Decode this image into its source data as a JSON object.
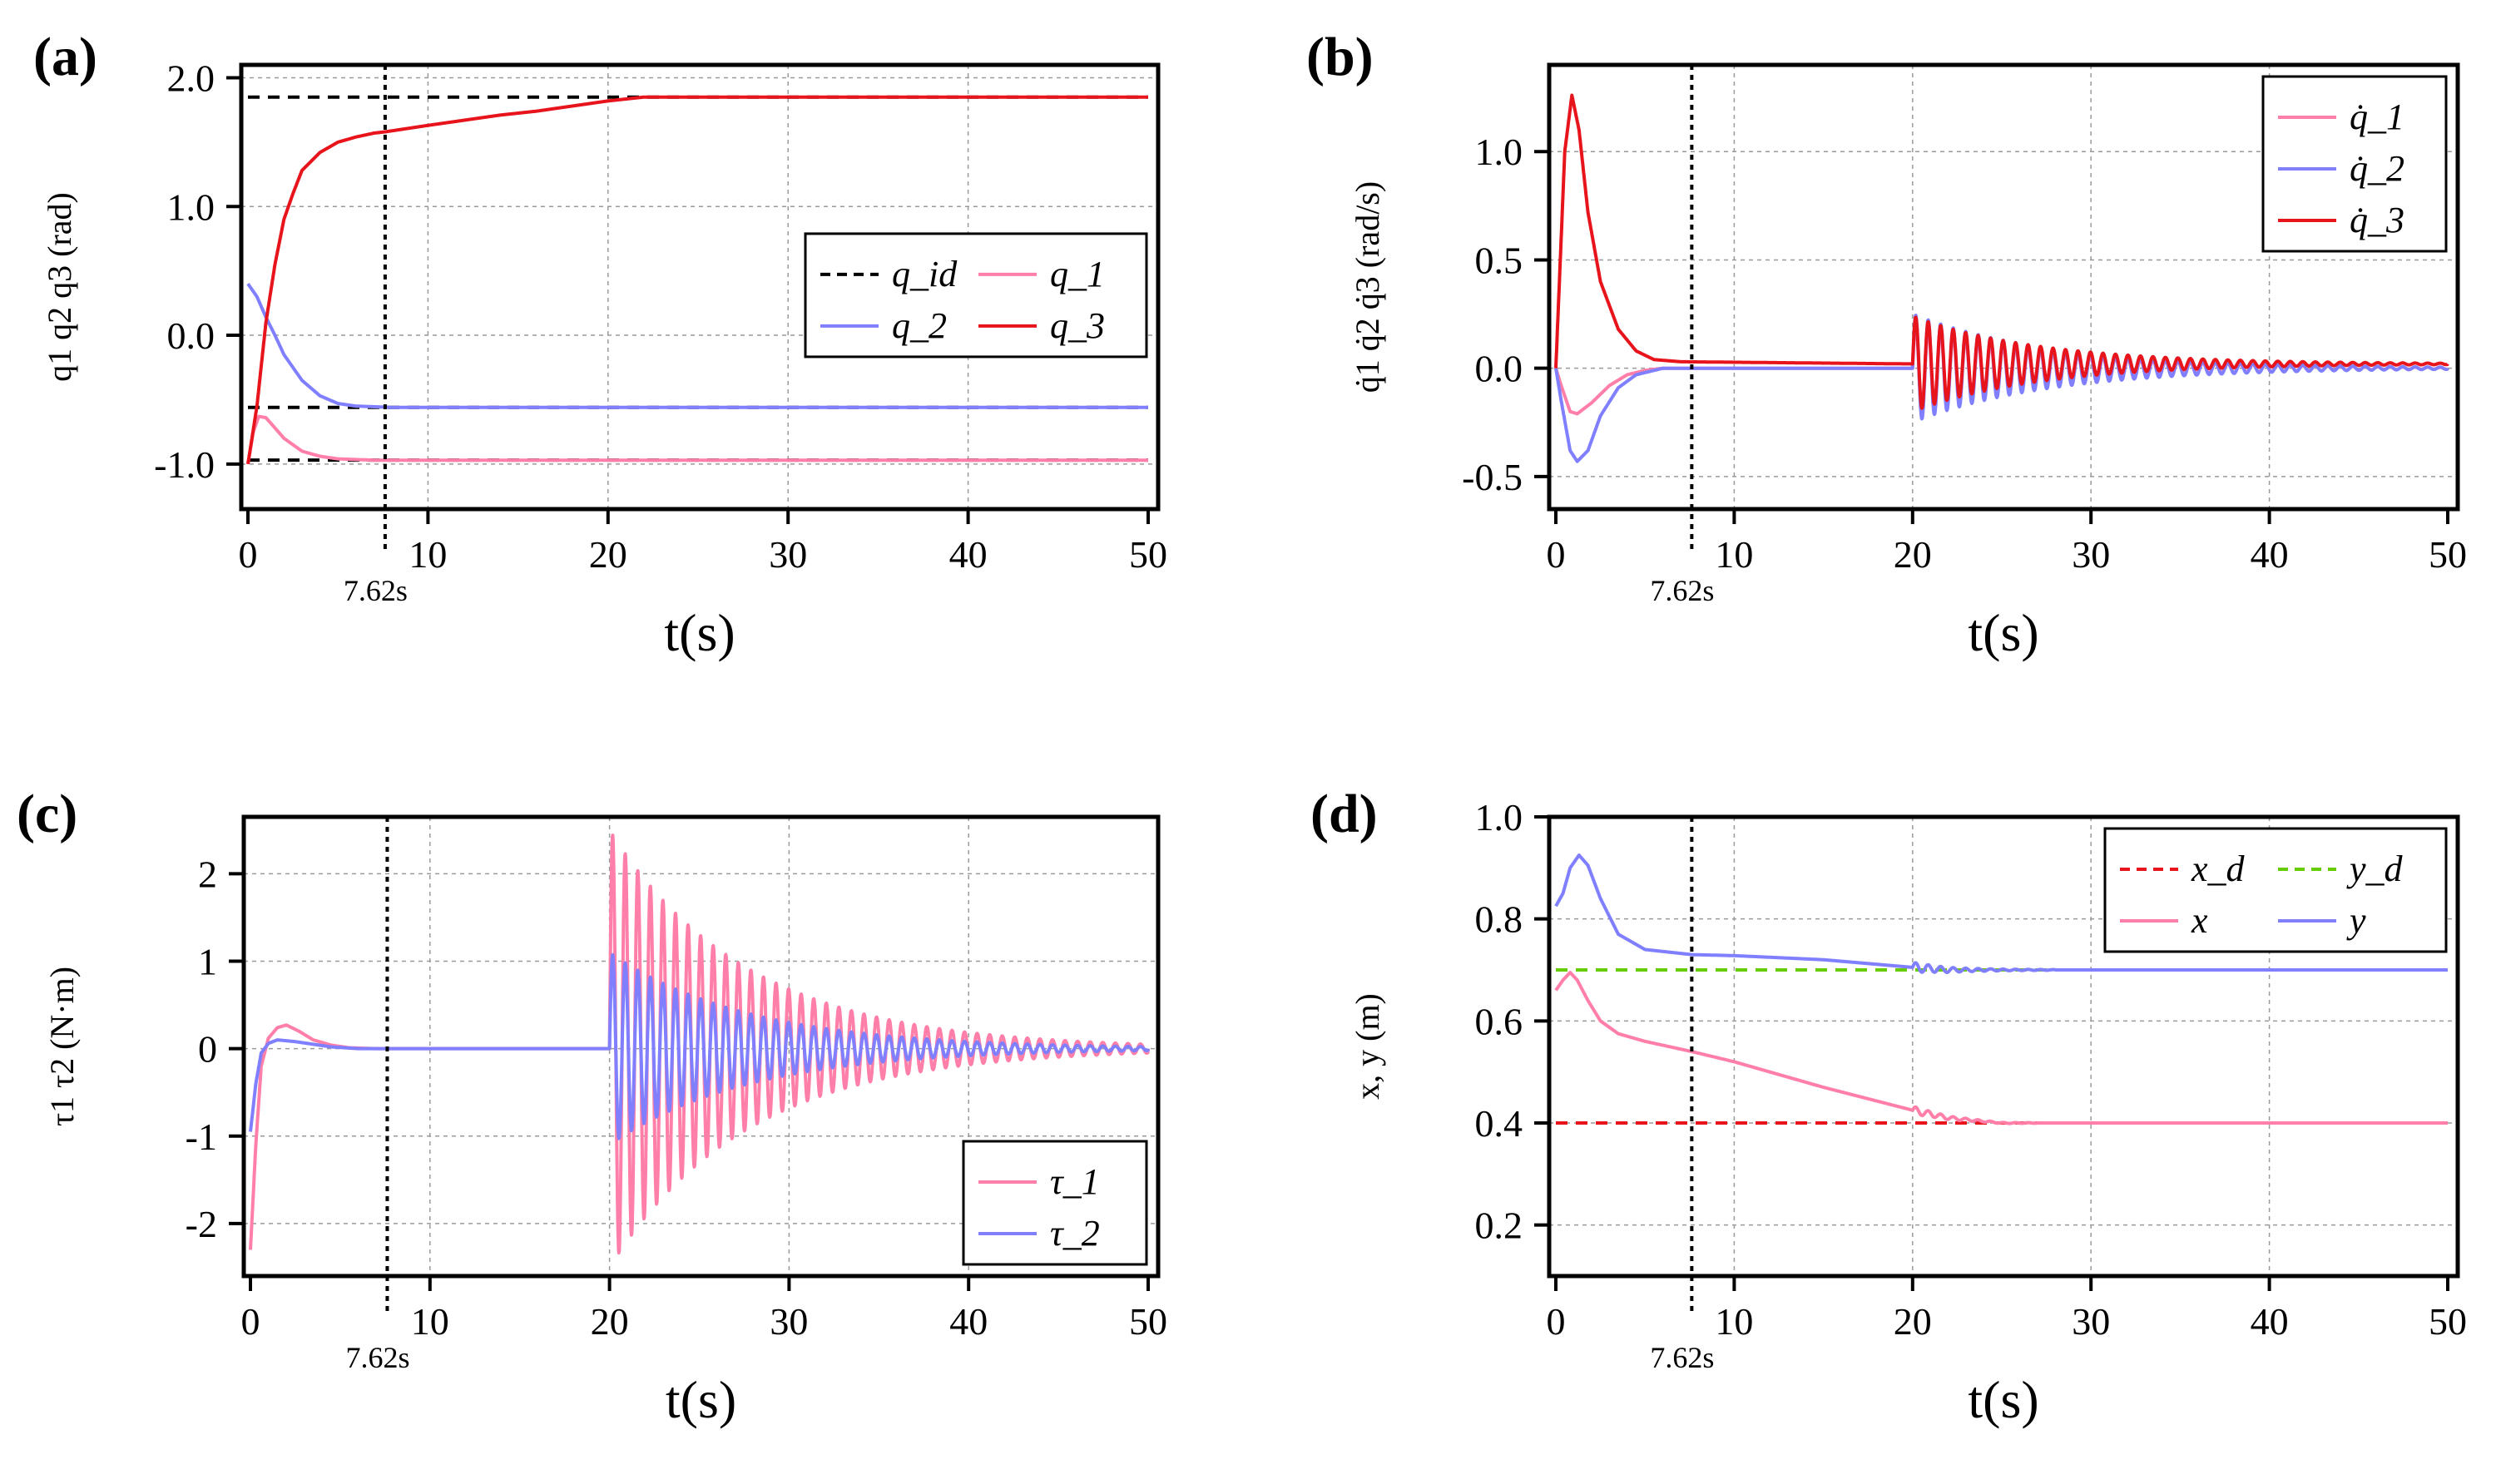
{
  "figure": {
    "time_unit_label": "t(s)",
    "marker_label": "7.62s"
  },
  "colors": {
    "pink": "#ff7fa8",
    "blue": "#7f7fff",
    "red": "#e8141c",
    "black": "#000000",
    "green": "#66cc00",
    "dred": "#e8141c"
  },
  "chart_data": [
    {
      "id": "a",
      "panel_label": "(a)",
      "type": "line",
      "xlabel": "t(s)",
      "ylabel": "q1 q2 q3 (rad)",
      "xlim": [
        0,
        50
      ],
      "ylim": [
        -1.35,
        2.1
      ],
      "xticks": [
        0,
        10,
        20,
        30,
        40,
        50
      ],
      "yticks": [
        -1.0,
        0.0,
        1.0,
        2.0
      ],
      "ytick_labels": [
        "-1.0",
        "0.0",
        "1.0",
        "2.0"
      ],
      "vline": {
        "x": 7.62,
        "label": "7.62s"
      },
      "legend": {
        "position": "middle-right",
        "columns": 2
      },
      "series": [
        {
          "name": "q_id",
          "style": "dashed",
          "color": "black",
          "segments": [
            [
              [
                0,
                1.85
              ],
              [
                50,
                1.85
              ]
            ],
            [
              [
                0,
                -0.56
              ],
              [
                50,
                -0.56
              ]
            ],
            [
              [
                0,
                -0.97
              ],
              [
                50,
                -0.97
              ]
            ]
          ]
        },
        {
          "name": "q_1",
          "style": "solid",
          "color": "pink",
          "points": [
            [
              0,
              -1.0
            ],
            [
              0.3,
              -0.75
            ],
            [
              0.6,
              -0.63
            ],
            [
              1,
              -0.64
            ],
            [
              1.5,
              -0.72
            ],
            [
              2,
              -0.8
            ],
            [
              3,
              -0.9
            ],
            [
              4,
              -0.94
            ],
            [
              5,
              -0.96
            ],
            [
              7,
              -0.97
            ],
            [
              50,
              -0.97
            ]
          ]
        },
        {
          "name": "q_2",
          "style": "solid",
          "color": "blue",
          "points": [
            [
              0,
              0.4
            ],
            [
              0.5,
              0.3
            ],
            [
              1,
              0.14
            ],
            [
              1.5,
              0.0
            ],
            [
              2,
              -0.15
            ],
            [
              3,
              -0.35
            ],
            [
              4,
              -0.47
            ],
            [
              5,
              -0.53
            ],
            [
              6,
              -0.55
            ],
            [
              8,
              -0.56
            ],
            [
              50,
              -0.56
            ]
          ]
        },
        {
          "name": "q_3",
          "style": "solid",
          "color": "red",
          "points": [
            [
              0,
              -1.0
            ],
            [
              0.5,
              -0.55
            ],
            [
              1,
              0.1
            ],
            [
              1.5,
              0.55
            ],
            [
              2,
              0.9
            ],
            [
              2.5,
              1.1
            ],
            [
              3,
              1.28
            ],
            [
              4,
              1.42
            ],
            [
              5,
              1.5
            ],
            [
              6,
              1.54
            ],
            [
              7,
              1.57
            ],
            [
              7.62,
              1.58
            ],
            [
              10,
              1.63
            ],
            [
              12,
              1.67
            ],
            [
              14,
              1.71
            ],
            [
              16,
              1.74
            ],
            [
              18,
              1.78
            ],
            [
              20,
              1.82
            ],
            [
              22,
              1.85
            ],
            [
              50,
              1.85
            ]
          ]
        }
      ]
    },
    {
      "id": "b",
      "panel_label": "(b)",
      "type": "line",
      "xlabel": "t(s)",
      "ylabel": "q̇1 q̇2 q̇3 (rad/s)",
      "xlim": [
        0,
        50
      ],
      "ylim": [
        -0.65,
        1.4
      ],
      "xticks": [
        0,
        10,
        20,
        30,
        40,
        50
      ],
      "yticks": [
        -0.5,
        0.0,
        0.5,
        1.0
      ],
      "ytick_labels": [
        "-0.5",
        "0.0",
        "0.5",
        "1.0"
      ],
      "vline": {
        "x": 7.62,
        "label": "7.62s"
      },
      "legend": {
        "position": "top-right",
        "columns": 1
      },
      "series": [
        {
          "name": "q̇_1",
          "style": "solid",
          "color": "pink",
          "points": [
            [
              0,
              0
            ],
            [
              0.3,
              -0.08
            ],
            [
              0.8,
              -0.2
            ],
            [
              1.2,
              -0.21
            ],
            [
              2,
              -0.16
            ],
            [
              3,
              -0.08
            ],
            [
              4,
              -0.03
            ],
            [
              5,
              -0.01
            ],
            [
              6,
              0.0
            ],
            [
              20,
              0.0
            ]
          ],
          "oscillation": {
            "start": 20,
            "end": 50,
            "amp": 0.2,
            "decay": 0.13,
            "period": 0.7,
            "offset": 0.0
          }
        },
        {
          "name": "q̇_2",
          "style": "solid",
          "color": "blue",
          "points": [
            [
              0,
              0
            ],
            [
              0.3,
              -0.15
            ],
            [
              0.8,
              -0.38
            ],
            [
              1.2,
              -0.43
            ],
            [
              1.8,
              -0.38
            ],
            [
              2.5,
              -0.22
            ],
            [
              3.5,
              -0.09
            ],
            [
              4.5,
              -0.03
            ],
            [
              5.5,
              -0.01
            ],
            [
              6,
              0.0
            ],
            [
              20,
              0.0
            ]
          ],
          "oscillation": {
            "start": 20,
            "end": 50,
            "amp": 0.25,
            "decay": 0.13,
            "period": 0.7,
            "offset": 0.0
          }
        },
        {
          "name": "q̇_3",
          "style": "solid",
          "color": "red",
          "points": [
            [
              0,
              0
            ],
            [
              0.2,
              0.4
            ],
            [
              0.5,
              1.0
            ],
            [
              0.9,
              1.26
            ],
            [
              1.3,
              1.1
            ],
            [
              1.8,
              0.72
            ],
            [
              2.5,
              0.4
            ],
            [
              3.5,
              0.18
            ],
            [
              4.5,
              0.08
            ],
            [
              5.5,
              0.04
            ],
            [
              7,
              0.03
            ],
            [
              20,
              0.02
            ]
          ],
          "oscillation": {
            "start": 20,
            "end": 50,
            "amp": 0.22,
            "decay": 0.14,
            "period": 0.7,
            "offset": 0.0
          }
        }
      ]
    },
    {
      "id": "c",
      "panel_label": "(c)",
      "type": "line",
      "xlabel": "t(s)",
      "ylabel": "τ1 τ2 (N·m)",
      "xlim": [
        0,
        50
      ],
      "ylim": [
        -2.6,
        2.65
      ],
      "xticks": [
        0,
        10,
        20,
        30,
        40,
        50
      ],
      "yticks": [
        -2,
        -1,
        0,
        1,
        2
      ],
      "ytick_labels": [
        "-2",
        "-1",
        "0",
        "1",
        "2"
      ],
      "vline": {
        "x": 7.62,
        "label": "7.62s"
      },
      "legend": {
        "position": "bottom-right",
        "columns": 1
      },
      "series": [
        {
          "name": "τ_1",
          "style": "solid",
          "color": "pink",
          "points": [
            [
              0,
              -2.3
            ],
            [
              0.3,
              -1.1
            ],
            [
              0.6,
              -0.2
            ],
            [
              1,
              0.12
            ],
            [
              1.5,
              0.24
            ],
            [
              2,
              0.27
            ],
            [
              2.7,
              0.2
            ],
            [
              3.5,
              0.1
            ],
            [
              4.5,
              0.04
            ],
            [
              5.5,
              0.01
            ],
            [
              7,
              0.0
            ],
            [
              20,
              0.0
            ]
          ],
          "oscillation": {
            "start": 20,
            "end": 50,
            "amp": 2.5,
            "decay": 0.13,
            "period": 0.7,
            "offset": 0.0
          }
        },
        {
          "name": "τ_2",
          "style": "solid",
          "color": "blue",
          "points": [
            [
              0,
              -0.95
            ],
            [
              0.3,
              -0.4
            ],
            [
              0.6,
              -0.05
            ],
            [
              1,
              0.06
            ],
            [
              1.5,
              0.1
            ],
            [
              2.5,
              0.08
            ],
            [
              3.5,
              0.05
            ],
            [
              4.5,
              0.02
            ],
            [
              6,
              0.0
            ],
            [
              20,
              0.0
            ]
          ],
          "oscillation": {
            "start": 20,
            "end": 50,
            "amp": 1.1,
            "decay": 0.13,
            "period": 0.7,
            "offset": 0.0
          }
        }
      ]
    },
    {
      "id": "d",
      "panel_label": "(d)",
      "type": "line",
      "xlabel": "t(s)",
      "ylabel": "x, y (m)",
      "xlim": [
        0,
        50
      ],
      "ylim": [
        0.1,
        1.0
      ],
      "xticks": [
        0,
        10,
        20,
        30,
        40,
        50
      ],
      "yticks": [
        0.2,
        0.4,
        0.6,
        0.8,
        1.0
      ],
      "ytick_labels": [
        "0.2",
        "0.4",
        "0.6",
        "0.8",
        "1.0"
      ],
      "vline": {
        "x": 7.62,
        "label": "7.62s"
      },
      "legend": {
        "position": "top-right",
        "columns": 2
      },
      "series": [
        {
          "name": "x_d",
          "style": "dashed",
          "color": "dred",
          "segments": [
            [
              [
                0,
                0.4
              ],
              [
                50,
                0.4
              ]
            ]
          ]
        },
        {
          "name": "y_d",
          "style": "dashed",
          "color": "green",
          "segments": [
            [
              [
                0,
                0.7
              ],
              [
                50,
                0.7
              ]
            ]
          ]
        },
        {
          "name": "x",
          "style": "solid",
          "color": "pink",
          "points": [
            [
              0,
              0.66
            ],
            [
              0.4,
              0.68
            ],
            [
              0.8,
              0.695
            ],
            [
              1.2,
              0.68
            ],
            [
              1.8,
              0.64
            ],
            [
              2.5,
              0.6
            ],
            [
              3.5,
              0.575
            ],
            [
              5,
              0.56
            ],
            [
              7.62,
              0.54
            ],
            [
              10,
              0.52
            ],
            [
              15,
              0.47
            ],
            [
              20,
              0.425
            ],
            [
              22,
              0.41
            ],
            [
              25,
              0.4
            ],
            [
              50,
              0.4
            ]
          ],
          "oscillation": {
            "start": 20,
            "end": 27,
            "amp": 0.008,
            "decay": 0.4,
            "period": 0.7,
            "offset": 0.0
          }
        },
        {
          "name": "y",
          "style": "solid",
          "color": "blue",
          "points": [
            [
              0,
              0.825
            ],
            [
              0.4,
              0.85
            ],
            [
              0.8,
              0.9
            ],
            [
              1.3,
              0.925
            ],
            [
              1.8,
              0.905
            ],
            [
              2.5,
              0.84
            ],
            [
              3.5,
              0.77
            ],
            [
              5,
              0.74
            ],
            [
              7.62,
              0.73
            ],
            [
              10,
              0.728
            ],
            [
              15,
              0.72
            ],
            [
              20,
              0.705
            ],
            [
              22,
              0.7
            ],
            [
              50,
              0.7
            ]
          ],
          "oscillation": {
            "start": 20,
            "end": 28,
            "amp": 0.01,
            "decay": 0.35,
            "period": 0.7,
            "offset": 0.0
          }
        }
      ]
    }
  ]
}
